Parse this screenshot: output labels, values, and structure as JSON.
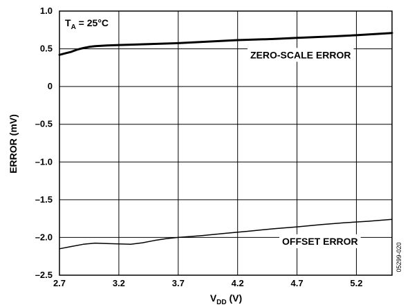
{
  "chart_data": {
    "type": "line",
    "xlabel_main": "V",
    "xlabel_sub": "DD",
    "xlabel_unit": " (V)",
    "ylabel": "ERROR (mV)",
    "xlim": [
      2.7,
      5.5
    ],
    "ylim": [
      -2.5,
      1.0
    ],
    "x_ticks": [
      2.7,
      3.2,
      3.7,
      4.2,
      4.7,
      5.2
    ],
    "x_tick_labels": [
      "2.7",
      "3.2",
      "3.7",
      "4.2",
      "4.7",
      "5.2"
    ],
    "y_ticks": [
      1.0,
      0.5,
      0,
      -0.5,
      -1.0,
      -1.5,
      -2.0,
      -2.5
    ],
    "y_tick_labels": [
      "1.0",
      "0.5",
      "0",
      "–0.5",
      "–1.0",
      "–1.5",
      "–2.0",
      "–2.5"
    ],
    "grid": true,
    "annotations": {
      "condition_main": "T",
      "condition_sub": "A",
      "condition_value": " = 25°C",
      "figure_id": "05299-020"
    },
    "series": [
      {
        "name": "ZERO-SCALE ERROR",
        "stroke_width": 3,
        "x": [
          2.7,
          2.75,
          2.8,
          2.85,
          2.9,
          2.95,
          3.0,
          3.1,
          3.2,
          3.3,
          3.5,
          3.7,
          4.0,
          4.2,
          4.5,
          4.7,
          5.0,
          5.2,
          5.5
        ],
        "y": [
          0.42,
          0.44,
          0.46,
          0.49,
          0.51,
          0.525,
          0.535,
          0.545,
          0.55,
          0.555,
          0.565,
          0.575,
          0.6,
          0.615,
          0.63,
          0.645,
          0.665,
          0.68,
          0.71
        ]
      },
      {
        "name": "OFFSET ERROR",
        "stroke_width": 1.5,
        "x": [
          2.7,
          2.8,
          2.9,
          3.0,
          3.1,
          3.2,
          3.3,
          3.4,
          3.5,
          3.6,
          3.7,
          3.9,
          4.1,
          4.3,
          4.5,
          4.7,
          4.9,
          5.1,
          5.3,
          5.5
        ],
        "y": [
          -2.15,
          -2.12,
          -2.09,
          -2.075,
          -2.08,
          -2.085,
          -2.09,
          -2.07,
          -2.04,
          -2.015,
          -2.0,
          -1.975,
          -1.945,
          -1.915,
          -1.885,
          -1.86,
          -1.83,
          -1.805,
          -1.785,
          -1.76
        ]
      }
    ]
  }
}
